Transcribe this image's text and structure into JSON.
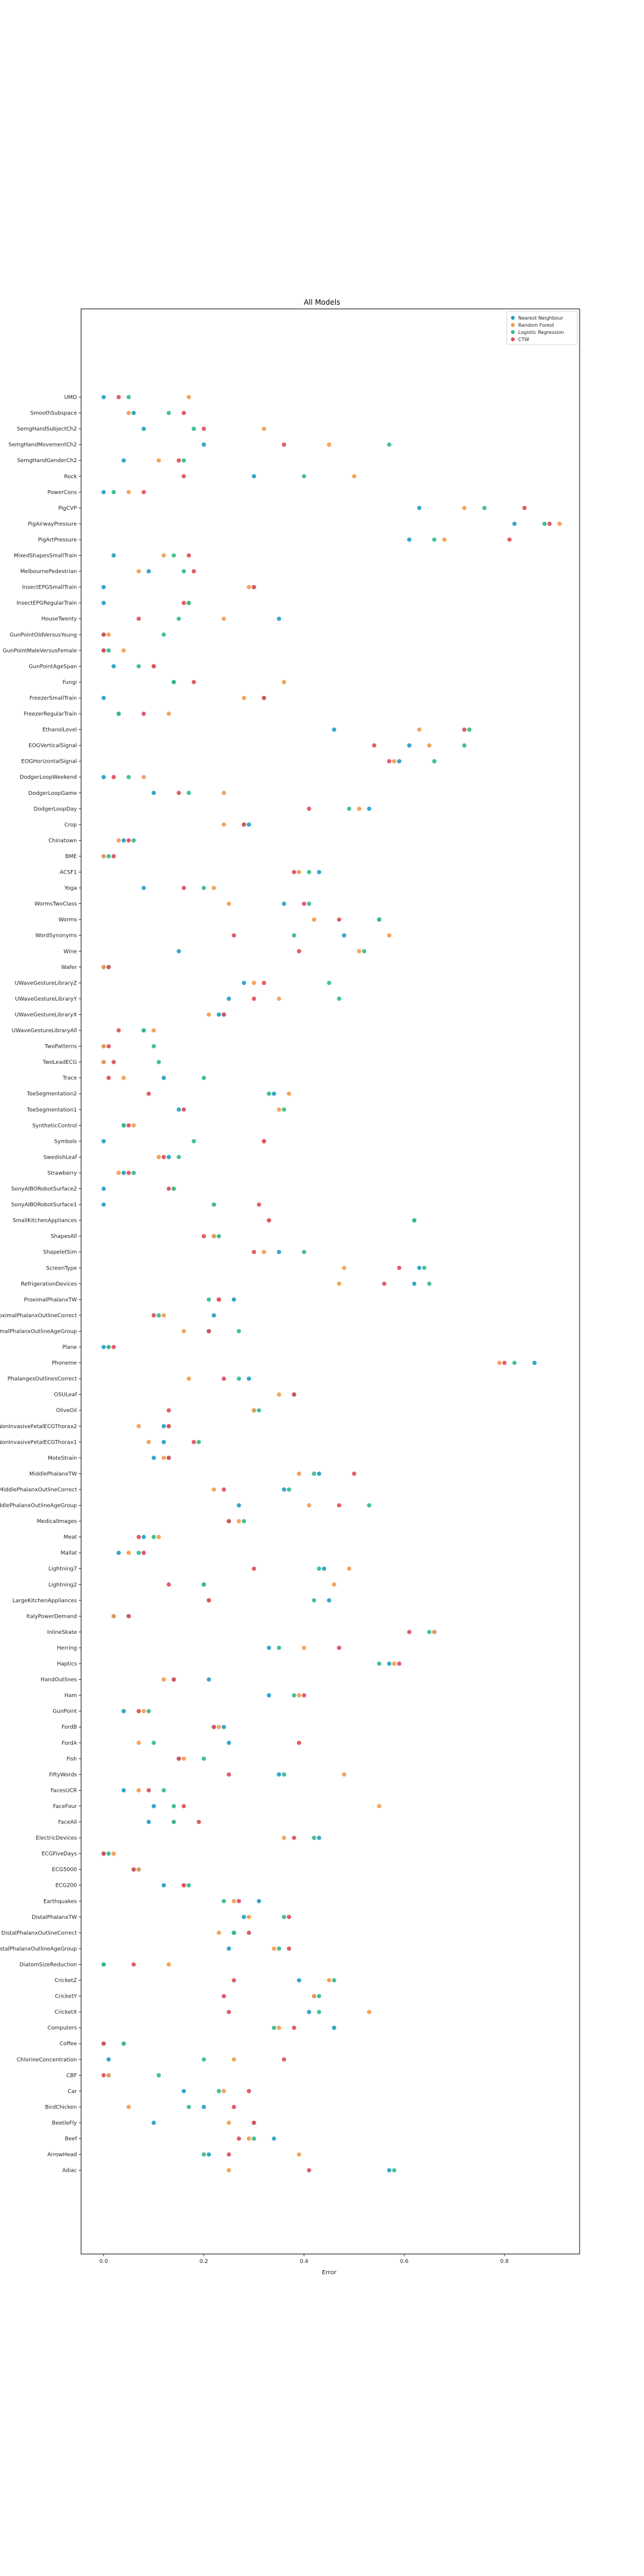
{
  "chart_data": {
    "type": "scatter",
    "title": "All Models",
    "xlabel": "Error",
    "ylabel": "",
    "xlim": [
      -0.045,
      0.95
    ],
    "xticks": [
      0.0,
      0.2,
      0.4,
      0.6,
      0.8
    ],
    "xtick_labels": [
      "0.0",
      "0.2",
      "0.4",
      "0.6",
      "0.8"
    ],
    "grid": false,
    "legend_position": "top-right",
    "categories": [
      "UMD",
      "SmoothSubspace",
      "SemgHandSubjectCh2",
      "SemgHandMovementCh2",
      "SemgHandGenderCh2",
      "Rock",
      "PowerCons",
      "PigCVP",
      "PigAirwayPressure",
      "PigArtPressure",
      "MixedShapesSmallTrain",
      "MelbournePedestrian",
      "InsectEPGSmallTrain",
      "InsectEPGRegularTrain",
      "HouseTwenty",
      "GunPointOldVersusYoung",
      "GunPointMaleVersusFemale",
      "GunPointAgeSpan",
      "Fungi",
      "FreezerSmallTrain",
      "FreezerRegularTrain",
      "EthanolLevel",
      "EOGVerticalSignal",
      "EOGHorizontalSignal",
      "DodgerLoopWeekend",
      "DodgerLoopGame",
      "DodgerLoopDay",
      "Crop",
      "Chinatown",
      "BME",
      "ACSF1",
      "Yoga",
      "WormsTwoClass",
      "Worms",
      "WordSynonyms",
      "Wine",
      "Wafer",
      "UWaveGestureLibraryZ",
      "UWaveGestureLibraryY",
      "UWaveGestureLibraryX",
      "UWaveGestureLibraryAll",
      "TwoPatterns",
      "TwoLeadECG",
      "Trace",
      "ToeSegmentation2",
      "ToeSegmentation1",
      "SyntheticControl",
      "Symbols",
      "SwedishLeaf",
      "Strawberry",
      "SonyAIBORobotSurface2",
      "SonyAIBORobotSurface1",
      "SmallKitchenAppliances",
      "ShapesAll",
      "ShapeletSim",
      "ScreenType",
      "RefrigerationDevices",
      "ProximalPhalanxTW",
      "ProximalPhalanxOutlineCorrect",
      "ProximalPhalanxOutlineAgeGroup",
      "Plane",
      "Phoneme",
      "PhalangesOutlinesCorrect",
      "OSULeaf",
      "OliveOil",
      "NonInvasiveFetalECGThorax2",
      "NonInvasiveFetalECGThorax1",
      "MoteStrain",
      "MiddlePhalanxTW",
      "MiddlePhalanxOutlineCorrect",
      "MiddlePhalanxOutlineAgeGroup",
      "MedicalImages",
      "Meat",
      "Mallat",
      "Lightning7",
      "Lightning2",
      "LargeKitchenAppliances",
      "ItalyPowerDemand",
      "InlineSkate",
      "Herring",
      "Haptics",
      "HandOutlines",
      "Ham",
      "GunPoint",
      "FordB",
      "FordA",
      "Fish",
      "FiftyWords",
      "FacesUCR",
      "FaceFour",
      "FaceAll",
      "ElectricDevices",
      "ECGFiveDays",
      "ECG5000",
      "ECG200",
      "Earthquakes",
      "DistalPhalanxTW",
      "DistalPhalanxOutlineCorrect",
      "DistalPhalanxOutlineAgeGroup",
      "DiatomSizeReduction",
      "CricketZ",
      "CricketY",
      "CricketX",
      "Computers",
      "Coffee",
      "ChlorineConcentration",
      "CBF",
      "Car",
      "BirdChicken",
      "BeetleFly",
      "Beef",
      "ArrowHead",
      "Adiac"
    ],
    "series": [
      {
        "name": "Nearest Neighbour",
        "color": "#1f9ec4",
        "values": [
          0.0,
          0.06,
          0.08,
          0.2,
          0.04,
          0.3,
          0.0,
          0.63,
          0.82,
          0.61,
          0.02,
          0.09,
          0.0,
          0.0,
          0.35,
          0.0,
          0.0,
          0.02,
          0.14,
          0.0,
          0.03,
          0.46,
          0.61,
          0.59,
          0.0,
          0.1,
          0.53,
          0.29,
          0.04,
          0.0,
          0.43,
          0.08,
          0.36,
          0.55,
          0.48,
          0.15,
          0.0,
          0.28,
          0.25,
          0.23,
          0.08,
          0.0,
          0.0,
          0.12,
          0.34,
          0.15,
          0.04,
          0.0,
          0.13,
          0.04,
          0.0,
          0.0,
          0.62,
          0.22,
          0.35,
          0.63,
          0.62,
          0.26,
          0.22,
          0.21,
          0.0,
          0.86,
          0.29,
          0.38,
          0.3,
          0.12,
          0.12,
          0.1,
          0.43,
          0.36,
          0.27,
          0.25,
          0.08,
          0.03,
          0.44,
          0.2,
          0.45,
          0.02,
          0.66,
          0.33,
          0.57,
          0.21,
          0.33,
          0.04,
          0.24,
          0.25,
          0.15,
          0.35,
          0.04,
          0.1,
          0.09,
          0.43,
          0.0,
          0.07,
          0.12,
          0.31,
          0.28,
          0.26,
          0.25,
          0.0,
          0.39,
          0.42,
          0.41,
          0.46,
          0.0,
          0.01,
          0.01,
          0.16,
          0.2,
          0.1,
          0.34,
          0.21,
          0.57
        ]
      },
      {
        "name": "Random Forest",
        "color": "#f39a4c",
        "values": [
          0.17,
          0.05,
          0.32,
          0.45,
          0.11,
          0.5,
          0.05,
          0.72,
          0.91,
          0.68,
          0.12,
          0.07,
          0.29,
          0.17,
          0.24,
          0.01,
          0.04,
          0.1,
          0.36,
          0.28,
          0.13,
          0.63,
          0.65,
          0.58,
          0.08,
          0.24,
          0.51,
          0.24,
          0.03,
          0.0,
          0.39,
          0.22,
          0.25,
          0.42,
          0.57,
          0.51,
          0.0,
          0.3,
          0.35,
          0.21,
          0.1,
          0.0,
          0.0,
          0.04,
          0.37,
          0.35,
          0.06,
          0.32,
          0.11,
          0.03,
          0.14,
          0.22,
          0.33,
          0.22,
          0.32,
          0.48,
          0.47,
          0.23,
          0.12,
          0.16,
          0.01,
          0.79,
          0.17,
          0.35,
          0.3,
          0.07,
          0.09,
          0.12,
          0.39,
          0.22,
          0.41,
          0.27,
          0.11,
          0.05,
          0.49,
          0.46,
          0.21,
          0.02,
          0.66,
          0.4,
          0.58,
          0.12,
          0.39,
          0.08,
          0.23,
          0.07,
          0.16,
          0.48,
          0.07,
          0.55,
          0.14,
          0.36,
          0.02,
          0.07,
          0.16,
          0.26,
          0.29,
          0.23,
          0.34,
          0.13,
          0.45,
          0.42,
          0.53,
          0.35,
          0.04,
          0.26,
          0.01,
          0.24,
          0.05,
          0.25,
          0.29,
          0.39,
          0.25
        ]
      },
      {
        "name": "Logistic Regression",
        "color": "#33b98a",
        "values": [
          0.05,
          0.13,
          0.18,
          0.57,
          0.16,
          0.4,
          0.02,
          0.76,
          0.88,
          0.66,
          0.14,
          0.16,
          0.3,
          0.17,
          0.15,
          0.12,
          0.01,
          0.07,
          0.14,
          0.32,
          0.03,
          0.73,
          0.72,
          0.66,
          0.05,
          0.17,
          0.49,
          0.28,
          0.06,
          0.01,
          0.41,
          0.2,
          0.41,
          0.55,
          0.38,
          0.52,
          0.01,
          0.45,
          0.47,
          0.24,
          0.08,
          0.1,
          0.11,
          0.2,
          0.33,
          0.36,
          0.04,
          0.18,
          0.15,
          0.06,
          0.14,
          0.22,
          0.62,
          0.23,
          0.4,
          0.64,
          0.65,
          0.21,
          0.11,
          0.27,
          0.01,
          0.82,
          0.27,
          0.38,
          0.31,
          0.13,
          0.19,
          0.13,
          0.42,
          0.37,
          0.53,
          0.28,
          0.1,
          0.07,
          0.43,
          0.2,
          0.42,
          0.05,
          0.65,
          0.35,
          0.55,
          0.14,
          0.38,
          0.09,
          0.22,
          0.1,
          0.2,
          0.36,
          0.12,
          0.14,
          0.14,
          0.42,
          0.01,
          0.06,
          0.17,
          0.24,
          0.36,
          0.26,
          0.35,
          0.0,
          0.46,
          0.43,
          0.43,
          0.34,
          0.04,
          0.2,
          0.11,
          0.23,
          0.17,
          0.3,
          0.3,
          0.2,
          0.58
        ]
      },
      {
        "name": "CTW",
        "color": "#de4b5a",
        "values": [
          0.03,
          0.16,
          0.2,
          0.36,
          0.15,
          0.16,
          0.08,
          0.84,
          0.89,
          0.81,
          0.17,
          0.18,
          0.3,
          0.16,
          0.07,
          0.0,
          0.0,
          0.1,
          0.18,
          0.32,
          0.08,
          0.72,
          0.54,
          0.57,
          0.02,
          0.15,
          0.41,
          0.28,
          0.05,
          0.02,
          0.38,
          0.16,
          0.4,
          0.47,
          0.26,
          0.39,
          0.01,
          0.32,
          0.3,
          0.24,
          0.03,
          0.01,
          0.02,
          0.01,
          0.09,
          0.16,
          0.05,
          0.32,
          0.12,
          0.05,
          0.13,
          0.31,
          0.33,
          0.2,
          0.3,
          0.59,
          0.56,
          0.23,
          0.1,
          0.21,
          0.02,
          0.8,
          0.24,
          0.38,
          0.13,
          0.13,
          0.18,
          0.13,
          0.5,
          0.24,
          0.47,
          0.25,
          0.07,
          0.08,
          0.3,
          0.13,
          0.21,
          0.05,
          0.61,
          0.47,
          0.59,
          0.14,
          0.4,
          0.07,
          0.22,
          0.39,
          0.15,
          0.25,
          0.09,
          0.16,
          0.19,
          0.38,
          0.0,
          0.06,
          0.16,
          0.27,
          0.37,
          0.29,
          0.37,
          0.06,
          0.26,
          0.24,
          0.25,
          0.38,
          0.0,
          0.36,
          0.0,
          0.29,
          0.26,
          0.3,
          0.27,
          0.25,
          0.41
        ]
      }
    ]
  }
}
